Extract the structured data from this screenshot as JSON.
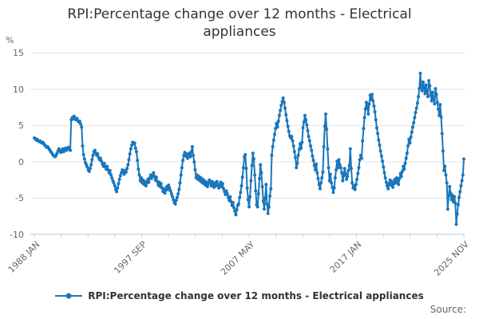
{
  "title": "RPI:Percentage change over 12 months - Electrical appliances",
  "y_axis": {
    "unit": "%",
    "ticks": [
      15,
      10,
      5,
      0,
      -5,
      -10
    ]
  },
  "x_axis": {
    "labels": [
      "1988 JAN",
      "1997 SEP",
      "2007 MAY",
      "2017 JAN",
      "2025 NOV"
    ],
    "minor_tick_count": 17,
    "label_every_n_ticks": 4
  },
  "legend": {
    "label": "RPI:Percentage change over 12 months - Electrical appliances"
  },
  "footer": {
    "source": "Source:"
  },
  "colors": {
    "line": "#1976bc",
    "grid": "#e6e6e6",
    "axis": "#ccd6eb",
    "title_text": "#333333",
    "axis_text": "#666666"
  },
  "chart_data": {
    "type": "line",
    "title": "RPI:Percentage change over 12 months - Electrical appliances",
    "series_name": "RPI:Percentage change over 12 months - Electrical appliances",
    "frequency": "monthly",
    "x_start": "1988 JAN",
    "x_end": "2025 NOV",
    "xlabel": "",
    "ylabel": "%",
    "ylim": [
      -10,
      15
    ],
    "grid": "horizontal",
    "legend_position": "bottom",
    "markers": true,
    "values_by_year": [
      {
        "year": 1988,
        "values": [
          3.3,
          3.2,
          3.0,
          3.1,
          2.9,
          2.8,
          2.9,
          2.7,
          2.6,
          2.7,
          2.5,
          2.3
        ]
      },
      {
        "year": 1989,
        "values": [
          2.2,
          2.0,
          2.1,
          1.9,
          1.7,
          1.5,
          1.3,
          1.1,
          0.9,
          0.8,
          0.7,
          0.9
        ]
      },
      {
        "year": 1990,
        "values": [
          1.2,
          1.5,
          1.8,
          1.5,
          1.3,
          1.6,
          1.8,
          1.4,
          1.6,
          1.9,
          1.6,
          1.8
        ]
      },
      {
        "year": 1991,
        "values": [
          2.0,
          1.8,
          1.6,
          5.8,
          6.1,
          5.9,
          6.3,
          6.0,
          5.8,
          6.0,
          5.7,
          5.5
        ]
      },
      {
        "year": 1992,
        "values": [
          5.6,
          5.2,
          4.8,
          2.2,
          1.0,
          0.4,
          -0.1,
          -0.4,
          -0.7,
          -1.1,
          -1.3,
          -0.9
        ]
      },
      {
        "year": 1993,
        "values": [
          -0.4,
          0.3,
          0.9,
          1.4,
          1.6,
          1.2,
          0.9,
          1.1,
          0.6,
          0.3,
          0.5,
          0.1
        ]
      },
      {
        "year": 1994,
        "values": [
          -0.3,
          -0.6,
          -0.2,
          -0.7,
          -1.0,
          -0.6,
          -1.1,
          -1.5,
          -1.2,
          -1.8,
          -2.2,
          -2.6
        ]
      },
      {
        "year": 1995,
        "values": [
          -2.9,
          -3.3,
          -3.8,
          -4.1,
          -3.6,
          -3.0,
          -2.4,
          -1.9,
          -1.5,
          -1.1,
          -1.4,
          -1.7
        ]
      },
      {
        "year": 1996,
        "values": [
          -1.2,
          -1.4,
          -0.9,
          -0.4,
          0.3,
          1.1,
          1.8,
          2.3,
          2.7,
          2.5,
          2.6,
          1.9
        ]
      },
      {
        "year": 1997,
        "values": [
          1.4,
          0.2,
          -1.0,
          -1.8,
          -2.6,
          -2.2,
          -2.9,
          -2.5,
          -3.1,
          -2.7,
          -3.3,
          -2.9
        ]
      },
      {
        "year": 1998,
        "values": [
          -2.4,
          -2.8,
          -2.2,
          -1.8,
          -2.3,
          -1.9,
          -1.5,
          -2.0,
          -2.5,
          -2.1,
          -2.7,
          -3.2
        ]
      },
      {
        "year": 1999,
        "values": [
          -2.8,
          -3.4,
          -3.0,
          -3.6,
          -4.1,
          -3.7,
          -4.3,
          -3.9,
          -3.4,
          -3.8,
          -3.2,
          -3.6
        ]
      },
      {
        "year": 2000,
        "values": [
          -4.0,
          -4.4,
          -4.8,
          -5.2,
          -5.6,
          -5.8,
          -5.3,
          -4.9,
          -4.4,
          -3.8,
          -2.9,
          -1.8
        ]
      },
      {
        "year": 2001,
        "values": [
          -0.8,
          0.2,
          0.9,
          1.3,
          0.8,
          1.1,
          0.5,
          0.9,
          1.2,
          0.7,
          1.4,
          2.1
        ]
      },
      {
        "year": 2002,
        "values": [
          0.9,
          0.0,
          -1.1,
          -2.2,
          -1.8,
          -2.4,
          -2.0,
          -2.6,
          -2.2,
          -2.8,
          -2.4,
          -3.0
        ]
      },
      {
        "year": 2003,
        "values": [
          -2.6,
          -3.2,
          -2.8,
          -3.4,
          -3.0,
          -2.5,
          -2.9,
          -3.3,
          -2.7,
          -3.1,
          -3.5,
          -2.9
        ]
      },
      {
        "year": 2004,
        "values": [
          -3.3,
          -2.7,
          -3.1,
          -3.6,
          -3.2,
          -2.8,
          -3.4,
          -3.0,
          -3.7,
          -4.1,
          -4.5,
          -4.0
        ]
      },
      {
        "year": 2005,
        "values": [
          -4.4,
          -4.9,
          -5.3,
          -4.8,
          -5.5,
          -6.0,
          -5.6,
          -6.3,
          -6.8,
          -7.3,
          -6.6,
          -6.0
        ]
      },
      {
        "year": 2006,
        "values": [
          -5.8,
          -4.9,
          -4.2,
          -3.3,
          -2.1,
          -0.8,
          0.7,
          1.0,
          -0.9,
          -3.6,
          -5.2,
          -6.2
        ]
      },
      {
        "year": 2007,
        "values": [
          -4.8,
          -2.6,
          -0.5,
          1.2,
          0.4,
          -1.8,
          -4.0,
          -5.9,
          -6.2,
          -4.4,
          -2.3,
          -0.4
        ]
      },
      {
        "year": 2008,
        "values": [
          -1.5,
          -3.4,
          -5.4,
          -6.5,
          -5.0,
          -3.1,
          -5.8,
          -7.1,
          -6.2,
          -4.7,
          -3.7,
          0.9
        ]
      },
      {
        "year": 2009,
        "values": [
          2.1,
          3.0,
          3.8,
          4.6,
          5.3,
          4.8,
          5.6,
          6.4,
          7.1,
          7.8,
          8.3,
          8.8
        ]
      },
      {
        "year": 2010,
        "values": [
          8.2,
          7.4,
          6.5,
          5.7,
          4.9,
          4.2,
          3.6,
          3.3,
          3.5,
          2.9,
          2.2,
          1.4
        ]
      },
      {
        "year": 2011,
        "values": [
          0.6,
          -0.8,
          -0.2,
          0.9,
          1.7,
          2.5,
          1.9,
          2.7,
          4.7,
          5.5,
          6.4,
          5.8
        ]
      },
      {
        "year": 2012,
        "values": [
          5.1,
          4.3,
          3.5,
          2.9,
          2.2,
          1.6,
          0.8,
          0.2,
          -0.5,
          -1.1,
          -0.3,
          -1.5
        ]
      },
      {
        "year": 2013,
        "values": [
          -2.3,
          -3.1,
          -3.7,
          -2.9,
          -2.2,
          -1.4,
          2.1,
          4.9,
          6.6,
          4.5,
          1.8,
          -0.8
        ]
      },
      {
        "year": 2014,
        "values": [
          -2.6,
          -1.7,
          -2.9,
          -3.5,
          -4.2,
          -3.6,
          -2.2,
          -1.1,
          0.1,
          -0.8,
          0.3,
          -0.4
        ]
      },
      {
        "year": 2015,
        "values": [
          -0.8,
          -1.5,
          -2.6,
          -1.9,
          -0.9,
          -1.6,
          -2.4,
          -2.0,
          -1.2,
          -0.5,
          1.8,
          -0.9
        ]
      },
      {
        "year": 2016,
        "values": [
          -2.9,
          -3.6,
          -3.3,
          -3.8,
          -3.1,
          -2.4,
          -1.6,
          -0.8,
          0.3,
          0.9,
          0.5,
          2.9
        ]
      },
      {
        "year": 2017,
        "values": [
          4.6,
          6.1,
          7.3,
          8.2,
          7.6,
          6.6,
          8.0,
          9.2,
          8.6,
          9.3,
          8.4,
          7.7
        ]
      },
      {
        "year": 2018,
        "values": [
          6.9,
          5.8,
          4.7,
          3.9,
          3.0,
          2.3,
          1.5,
          0.8,
          0.1,
          -0.7,
          -1.5,
          -2.2
        ]
      },
      {
        "year": 2019,
        "values": [
          -2.8,
          -3.3,
          -3.7,
          -3.0,
          -2.5,
          -3.2,
          -2.7,
          -3.5,
          -3.0,
          -2.4,
          -2.9,
          -2.2
        ]
      },
      {
        "year": 2020,
        "values": [
          -2.6,
          -3.1,
          -2.3,
          -1.6,
          -2.0,
          -1.3,
          -0.6,
          -1.0,
          -0.2,
          0.5,
          1.2,
          2.2
        ]
      },
      {
        "year": 2021,
        "values": [
          3.1,
          2.6,
          3.4,
          4.1,
          4.8,
          5.4,
          6.1,
          6.8,
          7.4,
          8.1,
          9.0,
          10.1
        ]
      },
      {
        "year": 2022,
        "values": [
          12.2,
          10.4,
          9.8,
          11.0,
          10.2,
          9.4,
          10.6,
          9.7,
          9.0,
          11.2,
          10.5,
          9.2
        ]
      },
      {
        "year": 2023,
        "values": [
          8.4,
          9.6,
          8.8,
          8.0,
          10.1,
          9.3,
          8.2,
          7.3,
          6.4,
          7.9,
          6.2,
          3.9
        ]
      },
      {
        "year": 2024,
        "values": [
          1.5,
          -1.2,
          -0.6,
          -1.8,
          -2.9,
          -6.5,
          -4.7,
          -3.4,
          -4.3,
          -5.2,
          -4.6,
          -5.5
        ]
      },
      {
        "year": 2025,
        "values": [
          -4.8,
          -5.7,
          -8.6,
          -7.2,
          -5.9,
          -4.9,
          -4.1,
          -3.3,
          -2.6,
          -1.8,
          0.4
        ]
      }
    ]
  }
}
